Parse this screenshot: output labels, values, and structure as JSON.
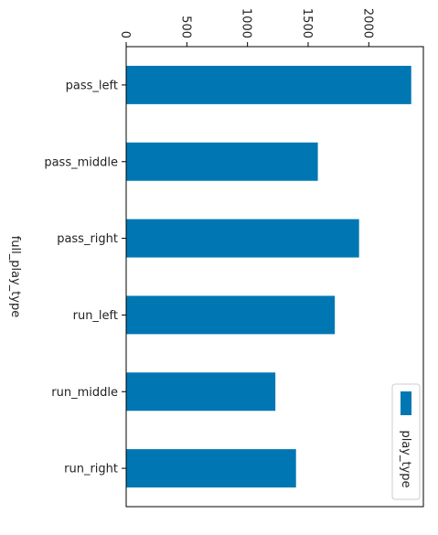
{
  "chart_data": {
    "type": "bar",
    "orientation": "horizontal",
    "categories": [
      "pass_left",
      "pass_middle",
      "pass_right",
      "run_left",
      "run_middle",
      "run_right"
    ],
    "series": [
      {
        "name": "play_type",
        "values": [
          2350,
          1580,
          1920,
          1720,
          1230,
          1400
        ]
      }
    ],
    "xlabel": "",
    "ylabel": "full_play_type",
    "xticks": [
      0,
      500,
      1000,
      1500,
      2000
    ],
    "xlim": [
      0,
      2450
    ],
    "tick_label_rotation_deg": 90,
    "legend": {
      "placement": "bottom-right",
      "entries": [
        "play_type"
      ]
    },
    "grid": false,
    "colors": {
      "bar": "#0077b3",
      "axis": "#000000",
      "text": "#222222"
    }
  }
}
